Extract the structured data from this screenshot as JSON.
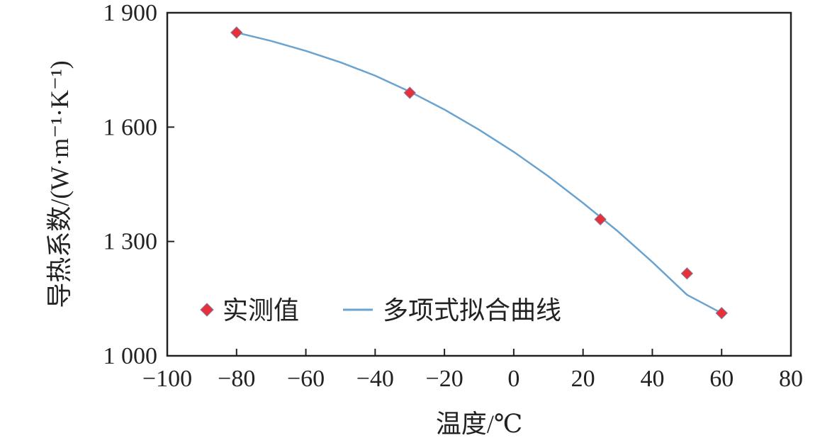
{
  "chart_data": {
    "type": "scatter",
    "title": "",
    "xlabel": "温度/℃",
    "ylabel": "导热系数/(W·m⁻¹·K⁻¹)",
    "xlim": [
      -100,
      80
    ],
    "ylim": [
      1000,
      1900
    ],
    "x_ticks": [
      -100,
      -80,
      -60,
      -40,
      -20,
      0,
      20,
      40,
      60,
      80
    ],
    "x_tick_labels": [
      "−100",
      "−80",
      "−60",
      "−40",
      "−20",
      "0",
      "20",
      "40",
      "60",
      "80"
    ],
    "y_ticks": [
      1000,
      1300,
      1600,
      1900
    ],
    "y_tick_labels": [
      "1 000",
      "1 300",
      "1 600",
      "1 900"
    ],
    "grid": false,
    "legend_position": "lower-left",
    "series": [
      {
        "name": "实测值",
        "kind": "markers",
        "marker": "diamond",
        "color": "#e8303a",
        "x": [
          -80,
          -30,
          25,
          50,
          60
        ],
        "y": [
          1848,
          1690,
          1358,
          1216,
          1112
        ]
      },
      {
        "name": "多项式拟合曲线",
        "kind": "line",
        "color": "#6aa3d0",
        "x": [
          -80,
          -70,
          -60,
          -50,
          -40,
          -30,
          -20,
          -10,
          0,
          10,
          20,
          30,
          40,
          50,
          60
        ],
        "y": [
          1848,
          1826,
          1800,
          1770,
          1735,
          1693,
          1646,
          1593,
          1535,
          1471,
          1401,
          1327,
          1246,
          1160,
          1112
        ]
      }
    ]
  }
}
